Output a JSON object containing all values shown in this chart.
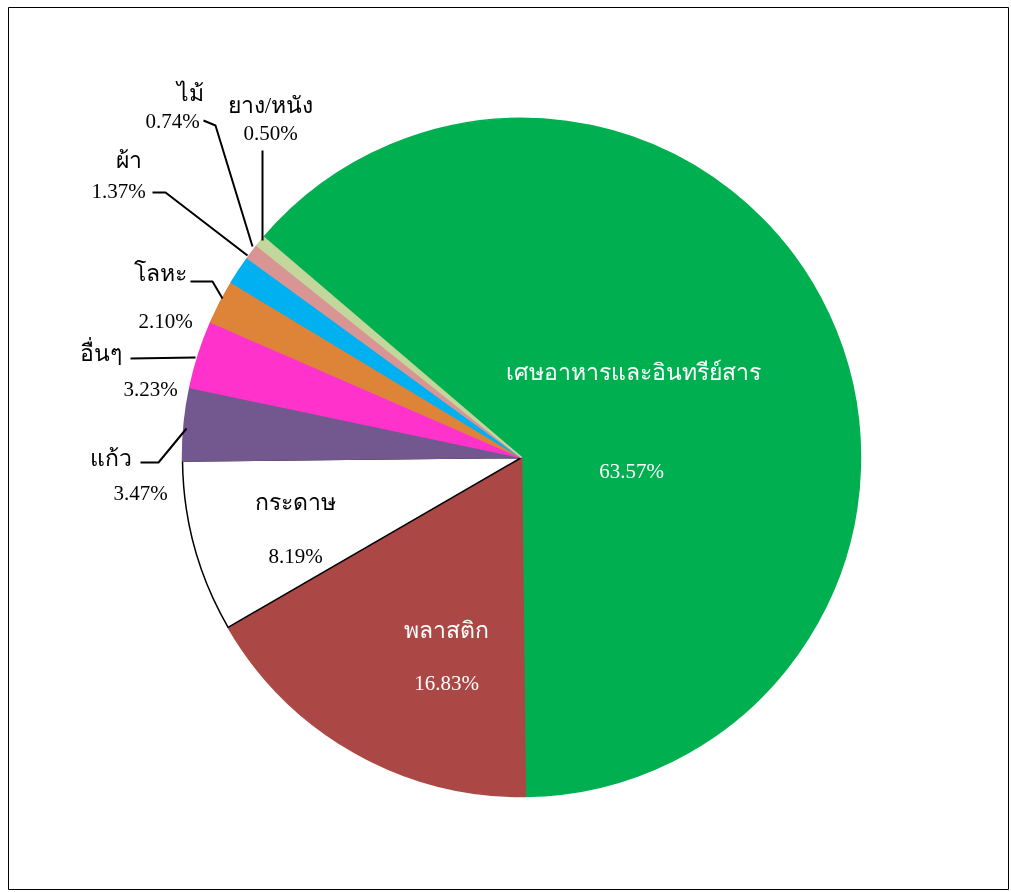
{
  "chart_data": {
    "type": "pie",
    "categories": [
      "เศษอาหารและอินทรีย์สาร",
      "พลาสติก",
      "กระดาษ",
      "แก้ว",
      "อื่นๆ",
      "โลหะ",
      "ผ้า",
      "ไม้",
      "ยาง/หนัง"
    ],
    "values": [
      63.57,
      16.83,
      8.19,
      3.47,
      3.23,
      2.1,
      1.37,
      0.74,
      0.5
    ],
    "value_labels": [
      "63.57%",
      "16.83%",
      "8.19%",
      "3.47%",
      "3.23%",
      "2.10%",
      "1.37%",
      "0.74%",
      "0.50%"
    ],
    "colors": [
      "#00b050",
      "#ab4744",
      "#ffffff",
      "#72588f",
      "#ff33cc",
      "#dd8439",
      "#00b0f0",
      "#d99594",
      "#c3d69b"
    ]
  }
}
